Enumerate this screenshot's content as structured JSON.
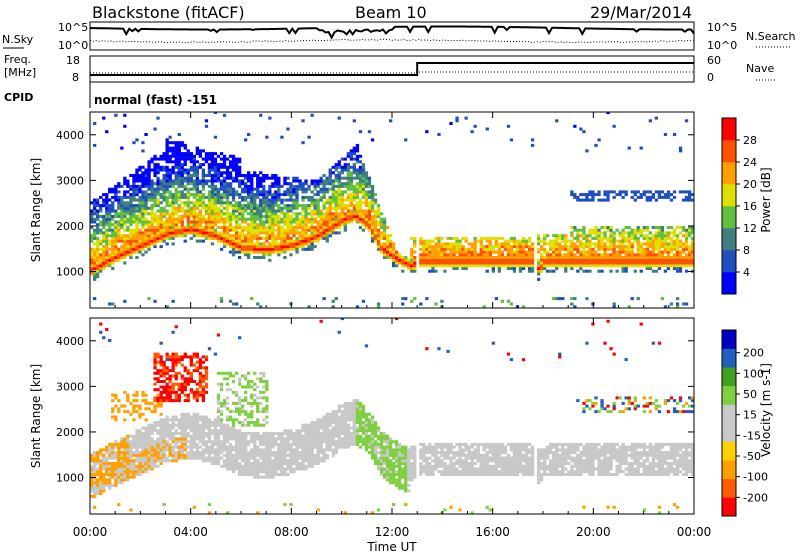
{
  "header": {
    "station": "Blackstone (fitACF)",
    "beam": "Beam 10",
    "date": "29/Mar/2014"
  },
  "noise_panel": {
    "left_label": "N.Sky",
    "right_label": "N.Search",
    "left_ticks": [
      "10^5",
      "10^0"
    ],
    "right_ticks": [
      "10^5",
      "10^0"
    ]
  },
  "freq_panel": {
    "left_label_line1": "Freq.",
    "left_label_line2": "[MHz]",
    "right_label": "Nave",
    "left_ticks": [
      "18",
      "8"
    ],
    "right_ticks": [
      "60",
      "0"
    ]
  },
  "cpid_panel": {
    "label": "CPID",
    "text": "normal (fast) -151"
  },
  "colors": {
    "power_scale": [
      "#0000ff",
      "#1f4fbf",
      "#3f7f7f",
      "#5fbf3f",
      "#dfdf00",
      "#ffa000",
      "#ff5000",
      "#ff0000"
    ],
    "velocity_scale": [
      "#ff0000",
      "#ff5a00",
      "#ffa000",
      "#ffd000",
      "#c8c8c8",
      "#c8c8c8",
      "#7fd040",
      "#3fa020",
      "#205fc0",
      "#0000c0"
    ],
    "velocity_gray": "#c8c8c8"
  },
  "icons": {
    "dotted_line": "dotted-legend-line",
    "solid_line": "solid-legend-line"
  },
  "chart_data": [
    {
      "type": "heatmap",
      "title": "",
      "xlabel": "Time UT",
      "ylabel": "Slant Range [km]",
      "x_ticks": [
        "00:00",
        "04:00",
        "08:00",
        "12:00",
        "16:00",
        "20:00",
        "00:00"
      ],
      "y_ticks": [
        "1000",
        "2000",
        "3000",
        "4000"
      ],
      "xlim": [
        0,
        24
      ],
      "ylim": [
        200,
        4500
      ],
      "colorbar": {
        "label": "Power [dB]",
        "ticks": [
          "4",
          "8",
          "12",
          "16",
          "20",
          "24",
          "28"
        ],
        "range": [
          0,
          32
        ]
      },
      "main_band": {
        "hours": [
          0,
          1,
          2,
          3,
          4,
          5,
          6,
          7,
          8,
          9,
          10,
          10.5,
          11,
          11.5,
          12,
          12.7,
          13,
          14,
          15,
          16,
          17,
          17.6,
          17.8,
          18,
          19,
          20,
          21,
          22,
          23,
          24
        ],
        "range_km": [
          1000,
          1300,
          1550,
          1800,
          1900,
          1750,
          1500,
          1450,
          1550,
          1750,
          2100,
          2200,
          2000,
          1500,
          1300,
          1100,
          1200,
          1200,
          1200,
          1200,
          1200,
          1200,
          1000,
          1200,
          1200,
          1200,
          1200,
          1200,
          1200,
          1200
        ]
      }
    },
    {
      "type": "heatmap",
      "title": "",
      "xlabel": "Time UT",
      "ylabel": "Slant Range [km]",
      "x_ticks": [
        "00:00",
        "04:00",
        "08:00",
        "12:00",
        "16:00",
        "20:00",
        "00:00"
      ],
      "y_ticks": [
        "1000",
        "2000",
        "3000",
        "4000"
      ],
      "xlim": [
        0,
        24
      ],
      "ylim": [
        200,
        4500
      ],
      "colorbar": {
        "label": "Velocity [m s-1]",
        "ticks": [
          "200",
          "100",
          "50",
          "15",
          "-15",
          "-50",
          "-100",
          "-200"
        ],
        "range": [
          -250,
          250
        ]
      }
    }
  ]
}
